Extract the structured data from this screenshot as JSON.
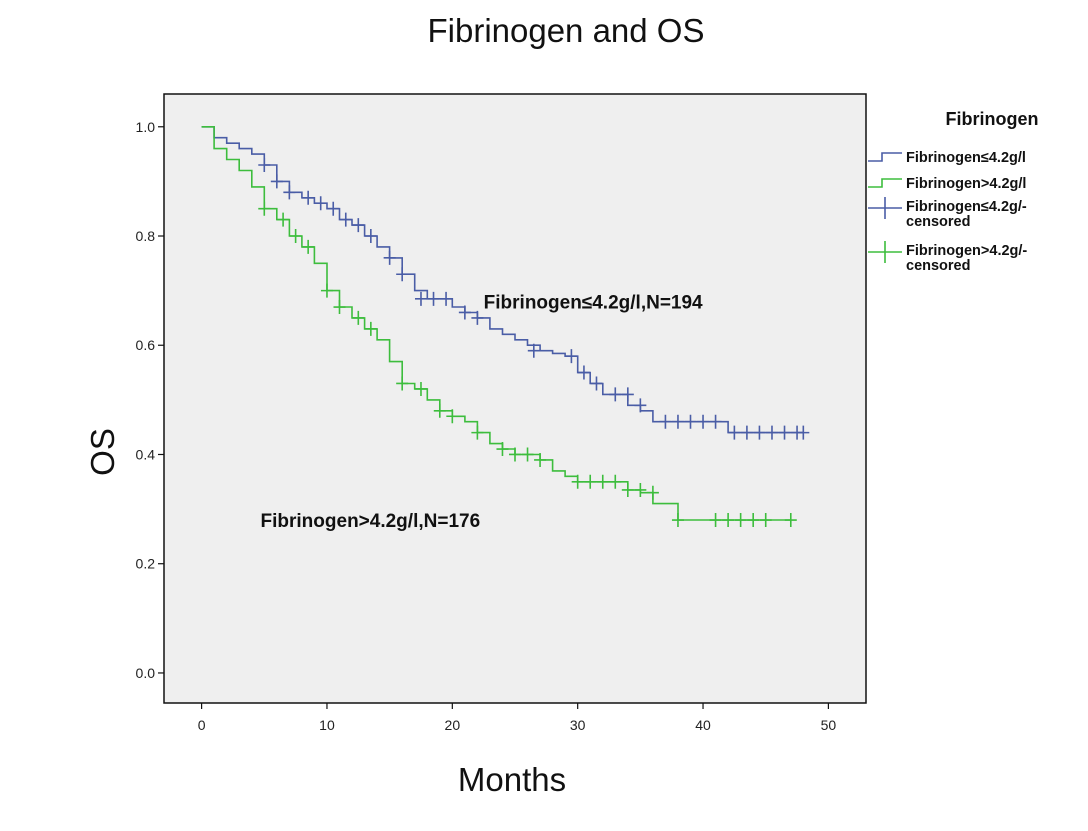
{
  "chart_data": {
    "type": "line",
    "title": "Fibrinogen and OS",
    "xlabel": "Months",
    "ylabel": "OS",
    "xlim": [
      -3,
      53
    ],
    "ylim": [
      -0.055,
      1.06
    ],
    "x_ticks": [
      0,
      10,
      20,
      30,
      40,
      50
    ],
    "y_ticks": [
      0.0,
      0.2,
      0.4,
      0.6,
      0.8,
      1.0
    ],
    "y_tick_labels": [
      "0.0",
      "0.2",
      "0.4",
      "0.6",
      "0.8",
      "1.0"
    ],
    "grid": false,
    "plot_background": "#efefef",
    "legend": {
      "title": "Fibrinogen",
      "position": "right",
      "entries": [
        {
          "lines": [
            "Fibrinogen≤4.2g/l"
          ],
          "color": "#4a5da6",
          "marker": "step"
        },
        {
          "lines": [
            "Fibrinogen>4.2g/l"
          ],
          "color": "#3dbd3d",
          "marker": "step"
        },
        {
          "lines": [
            "Fibrinogen≤4.2g/-",
            "censored"
          ],
          "color": "#4a5da6",
          "marker": "plus"
        },
        {
          "lines": [
            "Fibrinogen>4.2g/-",
            "censored"
          ],
          "color": "#3dbd3d",
          "marker": "plus"
        }
      ]
    },
    "annotations": [
      {
        "text": "Fibrinogen≤4.2g/l,N=194",
        "x": 22.5,
        "y": 0.68
      },
      {
        "text": "Fibrinogen>4.2g/l,N=176",
        "x": 4.7,
        "y": 0.28
      }
    ],
    "series": [
      {
        "color": "#4a5da6",
        "step_x": [
          0,
          1,
          2,
          3,
          4,
          5,
          6,
          7,
          8,
          9,
          10,
          11,
          12,
          13,
          14,
          15,
          16,
          17,
          18,
          19,
          20,
          21,
          22,
          23,
          24,
          25,
          26,
          27,
          28,
          29,
          30,
          31,
          32,
          34,
          35,
          36,
          38,
          42,
          48
        ],
        "step_y": [
          1.0,
          0.98,
          0.97,
          0.96,
          0.95,
          0.93,
          0.9,
          0.88,
          0.87,
          0.86,
          0.85,
          0.83,
          0.82,
          0.8,
          0.78,
          0.76,
          0.73,
          0.7,
          0.685,
          0.685,
          0.67,
          0.66,
          0.65,
          0.63,
          0.62,
          0.61,
          0.6,
          0.59,
          0.585,
          0.58,
          0.55,
          0.53,
          0.51,
          0.49,
          0.48,
          0.46,
          0.46,
          0.44,
          0.44
        ],
        "censored_x": [
          5,
          6,
          7,
          8.5,
          9.5,
          10.5,
          11.5,
          12.5,
          13.5,
          15,
          16,
          17.5,
          18.5,
          19.5,
          21,
          22,
          26.5,
          29.5,
          30.5,
          31.5,
          33,
          34,
          35,
          37,
          38,
          39,
          40,
          41,
          42.5,
          43.5,
          44.5,
          45.5,
          46.5,
          47.5,
          48
        ],
        "censored_y": [
          0.93,
          0.9,
          0.88,
          0.87,
          0.86,
          0.85,
          0.83,
          0.82,
          0.8,
          0.76,
          0.73,
          0.685,
          0.685,
          0.685,
          0.66,
          0.65,
          0.59,
          0.58,
          0.55,
          0.53,
          0.51,
          0.51,
          0.49,
          0.46,
          0.46,
          0.46,
          0.46,
          0.46,
          0.44,
          0.44,
          0.44,
          0.44,
          0.44,
          0.44,
          0.44
        ]
      },
      {
        "color": "#3dbd3d",
        "step_x": [
          0,
          1,
          2,
          3,
          4,
          5,
          6,
          7,
          8,
          9,
          10,
          11,
          12,
          13,
          14,
          15,
          16,
          17,
          18,
          19,
          20,
          21,
          22,
          23,
          24,
          25,
          26,
          27,
          28,
          29,
          30,
          34,
          35,
          36,
          38,
          47
        ],
        "step_y": [
          1.0,
          0.96,
          0.94,
          0.92,
          0.89,
          0.85,
          0.83,
          0.8,
          0.78,
          0.75,
          0.7,
          0.67,
          0.65,
          0.63,
          0.61,
          0.57,
          0.53,
          0.52,
          0.5,
          0.48,
          0.47,
          0.46,
          0.44,
          0.42,
          0.41,
          0.4,
          0.4,
          0.39,
          0.37,
          0.36,
          0.35,
          0.335,
          0.33,
          0.31,
          0.28,
          0.28
        ],
        "censored_x": [
          5,
          6.5,
          7.5,
          8.5,
          10,
          11,
          12.5,
          13.5,
          16,
          17.5,
          19,
          20,
          22,
          24,
          25,
          26,
          27,
          30,
          31,
          32,
          33,
          34,
          35,
          36,
          38,
          41,
          42,
          43,
          44,
          45,
          47
        ],
        "censored_y": [
          0.85,
          0.83,
          0.8,
          0.78,
          0.7,
          0.67,
          0.65,
          0.63,
          0.53,
          0.52,
          0.48,
          0.47,
          0.44,
          0.41,
          0.4,
          0.4,
          0.39,
          0.35,
          0.35,
          0.35,
          0.35,
          0.335,
          0.335,
          0.33,
          0.28,
          0.28,
          0.28,
          0.28,
          0.28,
          0.28,
          0.28
        ]
      }
    ]
  }
}
